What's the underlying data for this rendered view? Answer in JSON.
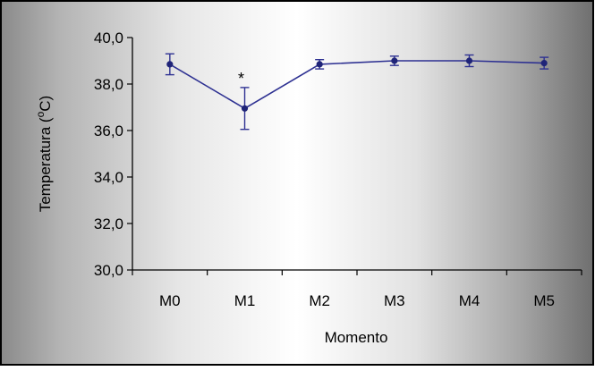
{
  "chart_data": {
    "type": "line",
    "title": "",
    "xlabel": "Momento",
    "ylabel_main": "Temperatura (",
    "ylabel_sup": "o",
    "ylabel_end": "C)",
    "categories": [
      "M0",
      "M1",
      "M2",
      "M3",
      "M4",
      "M5"
    ],
    "ylim": [
      30,
      40
    ],
    "yticks": [
      "30,0",
      "32,0",
      "34,0",
      "36,0",
      "38,0",
      "40,0"
    ],
    "series": [
      {
        "values": [
          38.85,
          36.95,
          38.85,
          39.0,
          39.0,
          38.9
        ],
        "error": [
          0.45,
          0.9,
          0.2,
          0.2,
          0.25,
          0.25
        ]
      }
    ],
    "annotations": [
      {
        "category": "M1",
        "text": "*"
      }
    ],
    "grid": false,
    "legend": "none",
    "colors": {
      "line": "#2e3192",
      "marker": "#1f2478",
      "axis": "#000000",
      "border": "#000000"
    }
  }
}
